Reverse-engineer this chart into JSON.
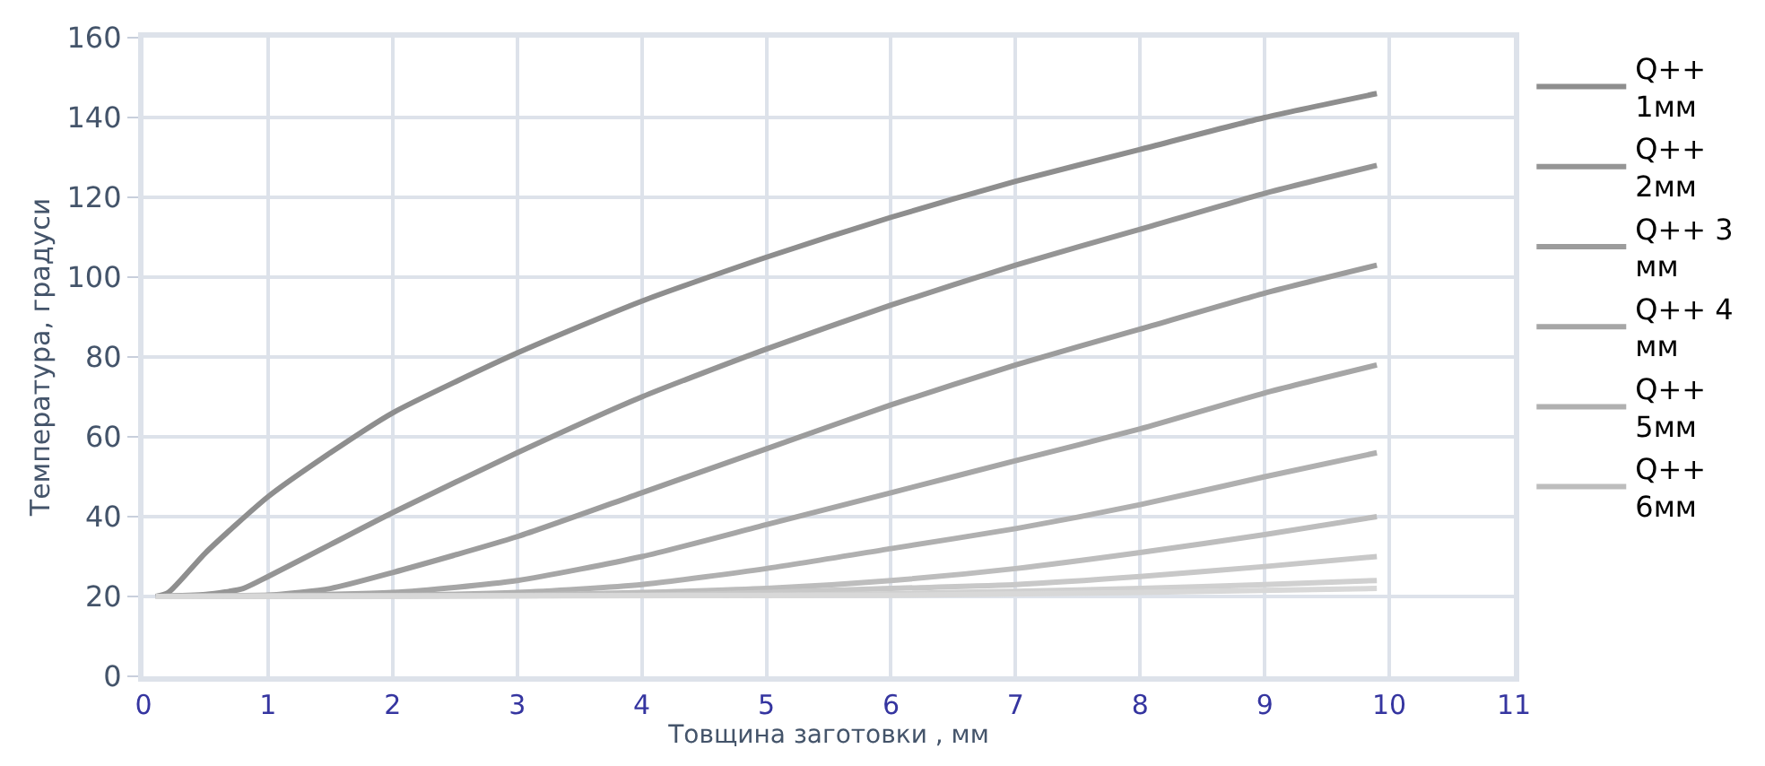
{
  "chart_data": {
    "type": "line",
    "xlabel": "Товщина заготовки , мм",
    "ylabel": "Температура, градуси",
    "xlim": [
      0,
      11
    ],
    "xticks": [
      0,
      1,
      2,
      3,
      4,
      5,
      6,
      7,
      8,
      9,
      10,
      11
    ],
    "ylim": [
      0,
      160
    ],
    "yticks": [
      0,
      20,
      40,
      60,
      80,
      100,
      120,
      140,
      160
    ],
    "grid": true,
    "legend": "right",
    "marker": "none",
    "line_style": "solid",
    "series": [
      {
        "name": "Q++ 1мм",
        "color": "#8e8e8e",
        "x": [
          0.1,
          0.2,
          0.5,
          1,
          1.5,
          2,
          3,
          4,
          5,
          6,
          7,
          8,
          9,
          9.9
        ],
        "values": [
          20,
          21,
          31,
          45,
          56,
          66,
          81,
          94,
          105,
          115,
          124,
          132,
          140,
          146
        ]
      },
      {
        "name": "Q++ 2мм",
        "color": "#959595",
        "x": [
          0.1,
          0.5,
          0.8,
          1,
          1.5,
          2,
          3,
          4,
          5,
          6,
          7,
          8,
          9,
          9.9
        ],
        "values": [
          20,
          20.5,
          22,
          25,
          33,
          41,
          56,
          70,
          82,
          93,
          103,
          112,
          121,
          128
        ]
      },
      {
        "name": "Q++ 3 мм",
        "color": "#9c9c9c",
        "x": [
          0.1,
          1,
          1.5,
          2,
          3,
          4,
          5,
          6,
          7,
          8,
          9,
          9.9
        ],
        "values": [
          20,
          20.3,
          22,
          26,
          35,
          46,
          57,
          68,
          78,
          87,
          96,
          103
        ]
      },
      {
        "name": "Q++ 4 мм",
        "color": "#a6a6a6",
        "x": [
          0.1,
          2,
          3,
          4,
          5,
          6,
          7,
          8,
          9,
          9.9
        ],
        "values": [
          20,
          21,
          24,
          30,
          38,
          46,
          54,
          62,
          71,
          78
        ]
      },
      {
        "name": "Q++ 5мм",
        "color": "#b0b0b0",
        "x": [
          0.1,
          2,
          3,
          4,
          5,
          6,
          7,
          8,
          9,
          9.9
        ],
        "values": [
          20,
          20.3,
          21,
          23,
          27,
          32,
          37,
          43,
          50,
          56
        ]
      },
      {
        "name": "Q++ 6мм",
        "color": "#bdbdbd",
        "x": [
          0.1,
          3,
          4,
          5,
          6,
          7,
          8,
          9,
          9.9
        ],
        "values": [
          20,
          20.3,
          21,
          22,
          24,
          27,
          31,
          35.5,
          40
        ]
      },
      {
        "color": "#c8c8c8",
        "x": [
          0.1,
          4,
          5,
          6,
          7,
          8,
          9,
          9.9
        ],
        "values": [
          20,
          20.3,
          21,
          22,
          23,
          25,
          27.5,
          30
        ]
      },
      {
        "color": "#d0d0d0",
        "x": [
          0.1,
          5,
          6,
          7,
          8,
          9,
          9.9
        ],
        "values": [
          20,
          20.3,
          20.7,
          21.3,
          22,
          23,
          24
        ]
      },
      {
        "color": "#d8d8d8",
        "x": [
          0.1,
          6,
          8,
          9.9
        ],
        "values": [
          20,
          20.3,
          21,
          22
        ]
      }
    ]
  }
}
